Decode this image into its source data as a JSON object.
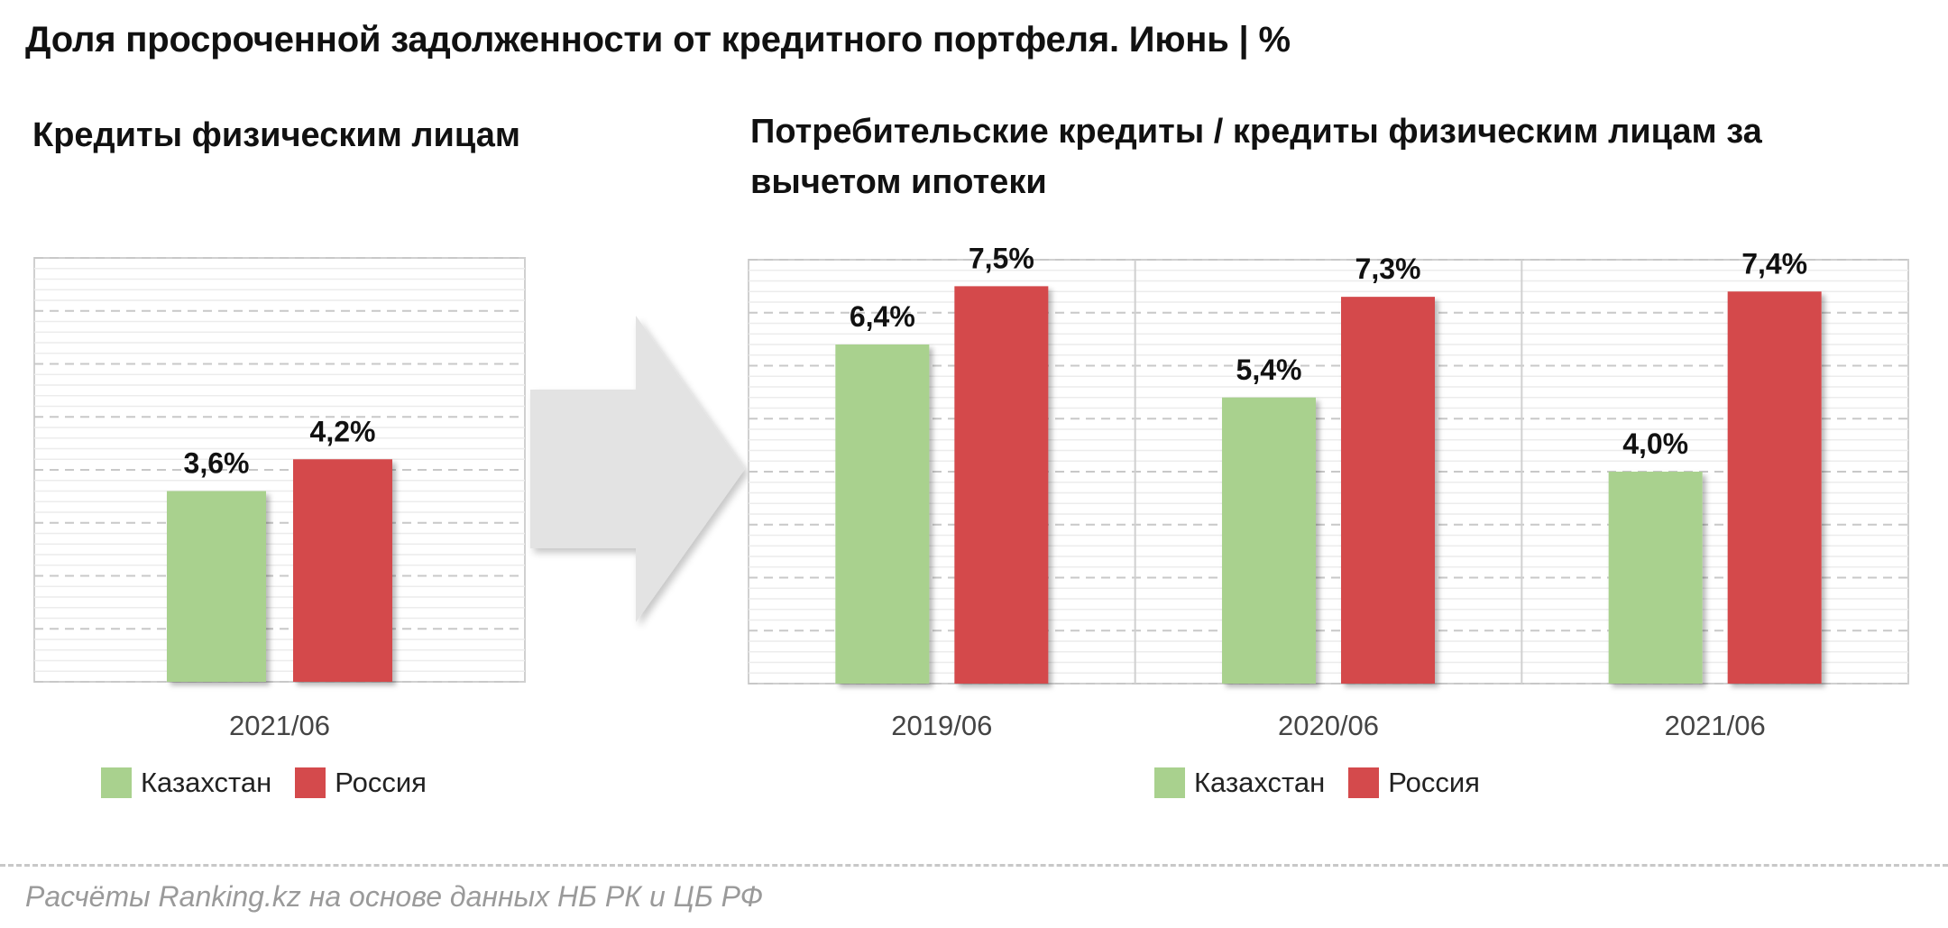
{
  "title": "Доля просроченной задолженности от кредитного портфеля. Июнь | %",
  "source": "Расчёты Ranking.kz на основе данных НБ РК и ЦБ РФ",
  "colors": {
    "kazakhstan": "#a9d18e",
    "russia": "#d44a4c",
    "arrow": "#e3e3e3"
  },
  "chart_data": [
    {
      "type": "bar",
      "title": "Кредиты физическим лицам",
      "categories": [
        "2021/06"
      ],
      "series": [
        {
          "name": "Казахстан",
          "values": [
            3.6
          ],
          "labels": [
            "3,6%"
          ]
        },
        {
          "name": "Россия",
          "values": [
            4.2
          ],
          "labels": [
            "4,2%"
          ]
        }
      ],
      "ylim": [
        0,
        8
      ],
      "grid": true,
      "legend": "bottom"
    },
    {
      "type": "bar",
      "title": "Потребительские кредиты / кредиты физическим лицам за вычетом ипотеки",
      "categories": [
        "2019/06",
        "2020/06",
        "2021/06"
      ],
      "series": [
        {
          "name": "Казахстан",
          "values": [
            6.4,
            5.4,
            4.0
          ],
          "labels": [
            "6,4%",
            "5,4%",
            "4,0%"
          ]
        },
        {
          "name": "Россия",
          "values": [
            7.5,
            7.3,
            7.4
          ],
          "labels": [
            "7,5%",
            "7,3%",
            "7,4%"
          ]
        }
      ],
      "ylim": [
        0,
        8
      ],
      "grid": true,
      "legend": "bottom"
    }
  ]
}
